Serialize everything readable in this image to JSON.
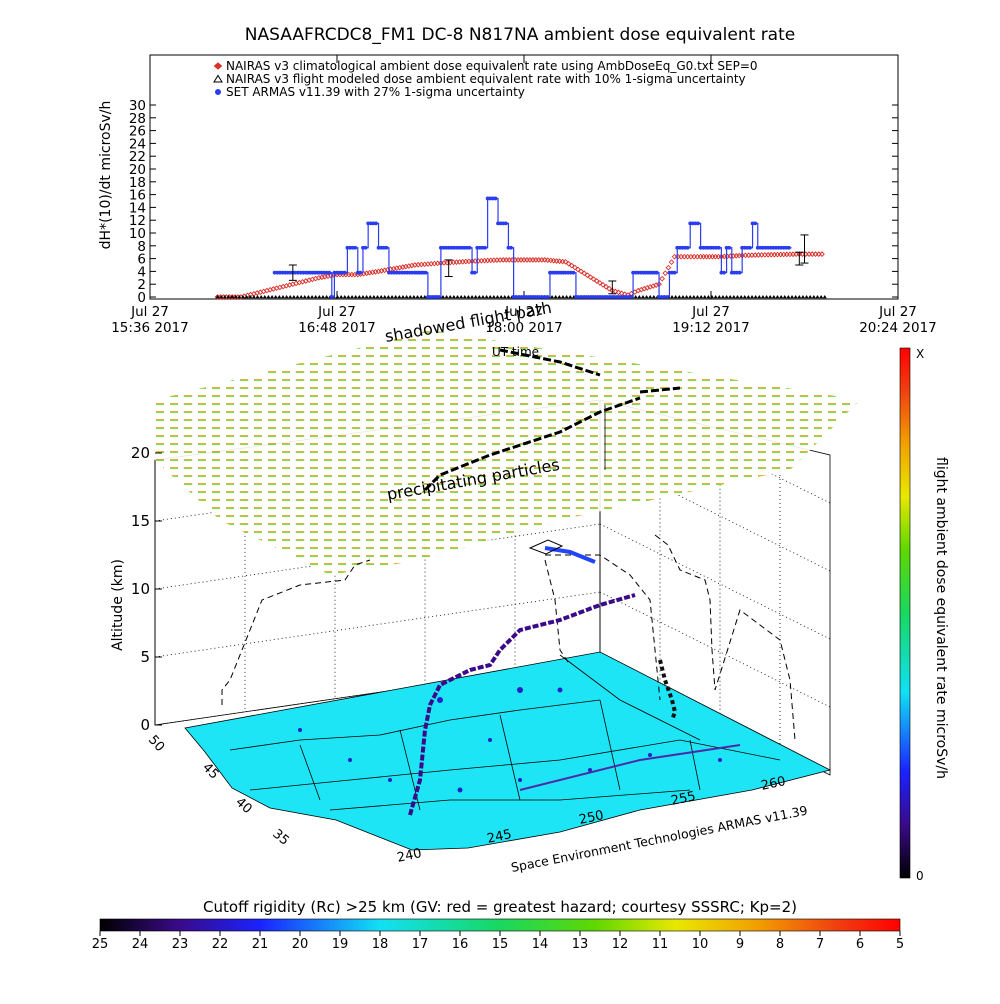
{
  "chart_data": [
    {
      "type": "scatter",
      "title": "NASAAFRCDC8_FM1 DC-8   N817NA ambient dose equivalent rate",
      "ylabel": "dH*(10)/dt microSv/h",
      "ylim": [
        0,
        30
      ],
      "yticks": [
        "0",
        "2",
        "4",
        "6",
        "8",
        "10",
        "12",
        "14",
        "16",
        "18",
        "20",
        "22",
        "24",
        "26",
        "28",
        "30"
      ],
      "x_ticks": [
        {
          "top": "Jul 27",
          "bottom": "15:36 2017",
          "t": 0
        },
        {
          "top": "Jul 27",
          "bottom": "16:48 2017",
          "t": 72
        },
        {
          "top": "Jul 27",
          "bottom": "18:00 2017",
          "t": 144
        },
        {
          "top": "Jul 27",
          "bottom": "19:12 2017",
          "t": 216
        },
        {
          "top": "Jul 27",
          "bottom": "20:24 2017",
          "t": 288
        }
      ],
      "xlim": [
        0,
        288
      ],
      "legend_position": "top-left",
      "series": [
        {
          "name": "NAIRAS v3 climatological ambient dose equivalent rate using AmbDoseEq_G0.txt SEP=0",
          "color": "#d9302a",
          "marker": "diamond",
          "x": [
            26,
            35,
            45,
            55,
            65,
            72,
            80,
            88,
            95,
            102,
            112,
            124,
            136,
            144,
            152,
            160,
            166,
            172,
            178,
            184,
            188,
            196,
            202,
            212,
            220,
            228,
            238,
            250,
            260
          ],
          "y": [
            0,
            0,
            1,
            2,
            3,
            3.5,
            3.5,
            4,
            4.5,
            5,
            5.3,
            5.6,
            5.8,
            5.8,
            5.8,
            5.5,
            4,
            2.5,
            1,
            0.3,
            1,
            2,
            6.3,
            6.3,
            6.3,
            6.5,
            6.6,
            6.7,
            6.7
          ]
        },
        {
          "name": "NAIRAS v3 flight modeled dose ambient equivalent rate with 10% 1-sigma uncertainty",
          "color": "#000000",
          "marker": "triangle",
          "x": [
            26,
            40,
            55,
            70,
            85,
            100,
            115,
            130,
            145,
            160,
            175,
            190,
            205,
            220,
            235,
            260
          ],
          "y": [
            0,
            0,
            0,
            0,
            0,
            0,
            0,
            0,
            0,
            0,
            0,
            0,
            0,
            0,
            0,
            0
          ]
        },
        {
          "name": "SET ARMAS v11.39 with 27% 1-sigma uncertainty",
          "color": "#2a3cf0",
          "marker": "circle",
          "x": [
            48,
            50,
            53,
            56,
            60,
            67,
            70,
            71,
            74,
            76,
            78,
            80,
            82,
            84,
            86,
            88,
            90,
            92,
            94,
            98,
            102,
            107,
            112,
            116,
            120,
            124,
            126,
            128,
            130,
            131,
            134,
            136,
            138,
            140,
            144,
            150,
            154,
            160,
            164,
            168,
            186,
            190,
            196,
            198,
            200,
            203,
            205,
            208,
            210,
            212,
            216,
            218,
            220,
            222,
            224,
            228,
            230,
            232,
            234,
            236,
            240,
            242,
            245,
            247
          ],
          "y": [
            3.8,
            3.8,
            3.8,
            3.8,
            3.8,
            3.8,
            0,
            3.8,
            3.8,
            7.7,
            7.7,
            3.8,
            7.7,
            11.5,
            11.5,
            7.7,
            7.7,
            3.8,
            3.8,
            3.8,
            3.8,
            0,
            7.7,
            7.7,
            7.7,
            3.8,
            7.7,
            7.7,
            15.4,
            15.4,
            11.5,
            11.5,
            7.7,
            0,
            0,
            0,
            3.8,
            3.8,
            0,
            0,
            3.8,
            3.8,
            0,
            0,
            3.8,
            7.7,
            7.7,
            11.5,
            11.5,
            7.7,
            7.7,
            7.7,
            3.8,
            7.7,
            3.8,
            7.7,
            7.7,
            11.5,
            7.7,
            7.7,
            7.7,
            7.7,
            7.7,
            7.7
          ],
          "error_bars": [
            {
              "x": 55,
              "y": 3.8,
              "err": 1.2
            },
            {
              "x": 115,
              "y": 4.5,
              "err": 1.3
            },
            {
              "x": 178,
              "y": 1.5,
              "err": 1.0
            },
            {
              "x": 250,
              "y": 6.0,
              "err": 1.0
            },
            {
              "x": 252,
              "y": 7.5,
              "err": 2.2
            }
          ]
        }
      ]
    },
    {
      "type": "scatter",
      "subtype": "3d-surface-flight-path",
      "zlabel": "Altitude (km)",
      "zticks": [
        "0",
        "5",
        "10",
        "15",
        "20"
      ],
      "zlim": [
        0,
        20
      ],
      "lat_ticks": [
        "50",
        "45",
        "40",
        "35"
      ],
      "lon_ticks": [
        "240",
        "245",
        "250",
        "255",
        "260"
      ],
      "annotations": [
        "shadowed flight path",
        "UT time",
        "precipitating particles"
      ],
      "credit": "Space Environment Technologies ARMAS v11.39",
      "colorbar_label": "flight ambient dose equivalent rate microSv/h",
      "colorbar_ticks": [
        "X",
        "0"
      ],
      "colors": {
        "ground": "#1ee5f5",
        "flight_low": "#000000",
        "flight_mid": "#5a1aa8",
        "flight_high": "#2244ff"
      }
    },
    {
      "type": "heatmap",
      "subtype": "colorbar",
      "label": "Cutoff rigidity (Rc) >25 km (GV: red = greatest hazard; courtesy SSSRC; Kp=2)",
      "ticks": [
        "25",
        "24",
        "23",
        "22",
        "21",
        "20",
        "19",
        "18",
        "17",
        "16",
        "15",
        "14",
        "13",
        "12",
        "11",
        "10",
        "9",
        "8",
        "7",
        "6",
        "5"
      ],
      "range": [
        25,
        5
      ]
    }
  ]
}
